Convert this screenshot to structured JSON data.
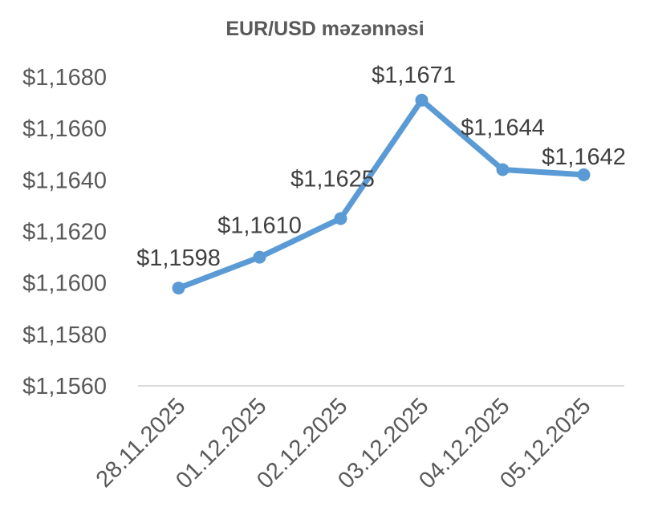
{
  "chart_data": {
    "type": "line",
    "title": "EUR/USD məzənnəsi",
    "xlabel": "",
    "ylabel": "",
    "categories": [
      "28.11.2025",
      "01.12.2025",
      "02.12.2025",
      "03.12.2025",
      "04.12.2025",
      "05.12.2025"
    ],
    "series": [
      {
        "values": [
          1.1598,
          1.161,
          1.1625,
          1.1671,
          1.1644,
          1.1642
        ],
        "data_labels": [
          "$1,1598",
          "$1,1610",
          "$1,1625",
          "$1,1671",
          "$1,1644",
          "$1,1642"
        ],
        "color": "#5b9bd5"
      }
    ],
    "ylim": [
      1.156,
      1.168
    ],
    "yticks": [
      1.156,
      1.158,
      1.16,
      1.162,
      1.164,
      1.166,
      1.168
    ],
    "ytick_labels": [
      "$1,1560",
      "$1,1580",
      "$1,1600",
      "$1,1620",
      "$1,1640",
      "$1,1660",
      "$1,1680"
    ],
    "grid": false,
    "legend": "none",
    "axis_color": "#d9d9d9",
    "text_color": "#595959"
  }
}
